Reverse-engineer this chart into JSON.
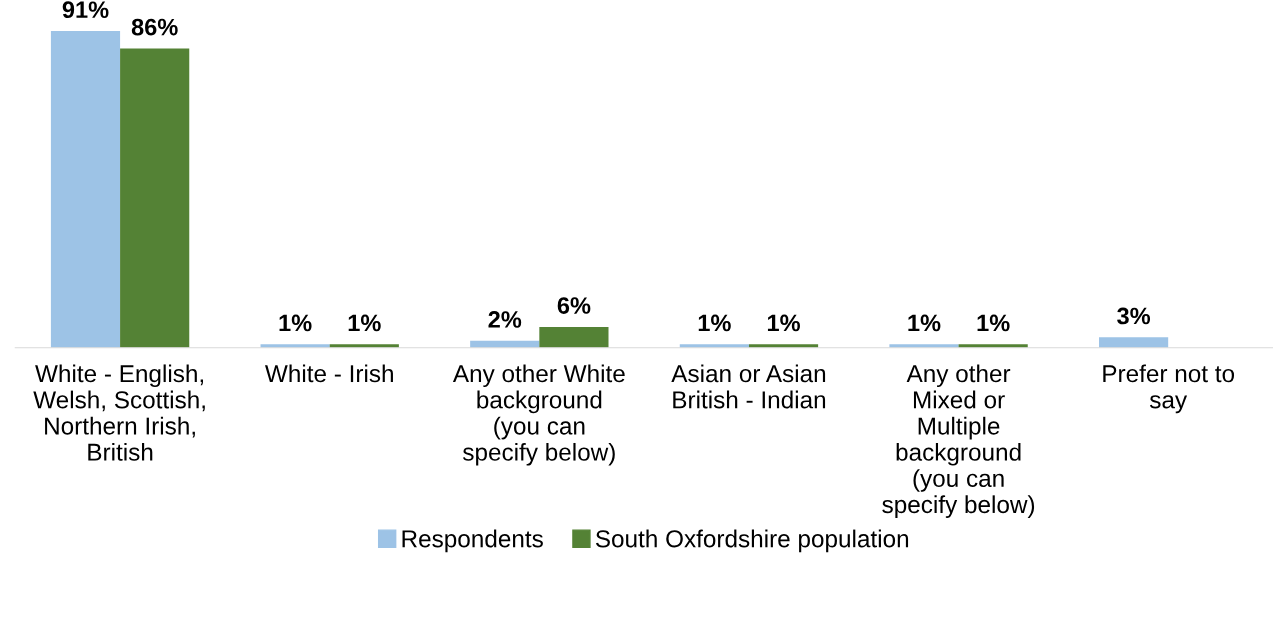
{
  "chart_data": {
    "type": "bar",
    "categories": [
      "White - English,\nWelsh, Scottish,\nNorthern Irish,\nBritish",
      "White - Irish",
      "Any other White\nbackground\n(you can\nspecify below)",
      "Asian or Asian\nBritish - Indian",
      "Any other\nMixed or\nMultiple\nbackground\n(you can\nspecify below)",
      "Prefer not to\nsay"
    ],
    "series": [
      {
        "name": "Respondents",
        "color": "#9dc3e6",
        "values": [
          91,
          1,
          2,
          1,
          1,
          3
        ],
        "value_labels": [
          "91%",
          "1%",
          "2%",
          "1%",
          "1%",
          "3%"
        ]
      },
      {
        "name": "South Oxfordshire population",
        "color": "#548235",
        "values": [
          86,
          1,
          6,
          1,
          1,
          null
        ],
        "value_labels": [
          "86%",
          "1%",
          "6%",
          "1%",
          "1%",
          null
        ]
      }
    ],
    "legend": "bottom",
    "grid": false
  }
}
